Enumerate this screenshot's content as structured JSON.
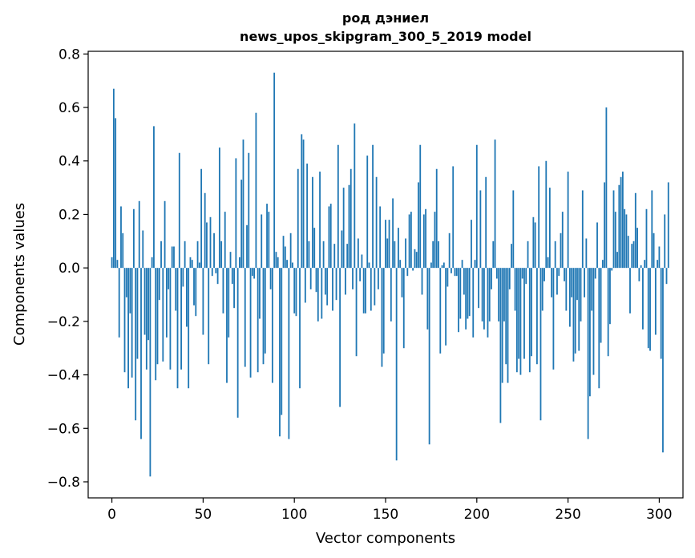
{
  "chart_data": {
    "type": "bar",
    "title_line1": "род дэниел",
    "title_line2": "news_upos_skipgram_300_5_2019 model",
    "xlabel": "Vector components",
    "ylabel": "Components values",
    "xlim": [
      -13,
      313
    ],
    "ylim": [
      -0.86,
      0.81
    ],
    "xticks": [
      0,
      50,
      100,
      150,
      200,
      250,
      300
    ],
    "xtick_labels": [
      "0",
      "50",
      "100",
      "150",
      "200",
      "250",
      "300"
    ],
    "yticks": [
      -0.8,
      -0.6,
      -0.4,
      -0.2,
      0.0,
      0.2,
      0.4,
      0.6,
      0.8
    ],
    "ytick_labels": [
      "−0.8",
      "−0.6",
      "−0.4",
      "−0.2",
      "0.0",
      "0.2",
      "0.4",
      "0.6",
      "0.8"
    ],
    "bar_color": "#1f77b4",
    "grid": false,
    "values": [
      0.04,
      0.67,
      0.56,
      0.03,
      -0.26,
      0.23,
      0.13,
      -0.39,
      -0.11,
      -0.45,
      -0.17,
      -0.41,
      0.22,
      -0.57,
      -0.34,
      0.25,
      -0.64,
      0.14,
      -0.25,
      -0.38,
      -0.27,
      -0.78,
      0.04,
      0.53,
      -0.42,
      -0.36,
      -0.12,
      0.1,
      -0.35,
      0.25,
      -0.26,
      -0.08,
      -0.38,
      0.08,
      0.08,
      -0.16,
      -0.45,
      0.43,
      -0.38,
      -0.07,
      0.1,
      -0.22,
      -0.45,
      0.04,
      0.03,
      -0.14,
      -0.18,
      0.1,
      0.02,
      0.37,
      -0.25,
      0.28,
      0.17,
      -0.36,
      0.19,
      -0.03,
      0.13,
      -0.02,
      -0.06,
      0.45,
      0.1,
      -0.17,
      0.21,
      -0.43,
      -0.26,
      0.06,
      -0.06,
      -0.15,
      0.41,
      -0.56,
      0.04,
      0.33,
      0.48,
      -0.37,
      0.16,
      0.43,
      -0.41,
      -0.03,
      -0.04,
      0.58,
      -0.39,
      -0.19,
      0.2,
      -0.36,
      -0.32,
      0.24,
      0.21,
      -0.08,
      -0.43,
      0.73,
      0.06,
      0.04,
      -0.63,
      -0.55,
      0.12,
      0.08,
      0.03,
      -0.64,
      0.13,
      0.02,
      -0.17,
      -0.18,
      0.37,
      -0.45,
      0.5,
      0.48,
      -0.13,
      0.39,
      0.1,
      -0.08,
      0.34,
      0.15,
      -0.09,
      -0.2,
      0.36,
      -0.19,
      0.1,
      -0.1,
      -0.14,
      0.23,
      0.24,
      -0.16,
      0.09,
      -0.12,
      0.46,
      -0.52,
      0.14,
      0.3,
      -0.1,
      0.09,
      0.31,
      0.37,
      -0.08,
      0.54,
      -0.33,
      0.11,
      -0.05,
      0.05,
      -0.17,
      -0.17,
      0.42,
      0.02,
      -0.16,
      0.46,
      -0.14,
      0.34,
      -0.08,
      0.23,
      -0.37,
      -0.32,
      0.18,
      0.11,
      0.18,
      -0.2,
      0.26,
      0.1,
      -0.72,
      0.15,
      0.03,
      -0.11,
      -0.3,
      0.11,
      -0.03,
      0.2,
      0.21,
      -0.01,
      0.07,
      0.06,
      0.32,
      0.46,
      -0.1,
      0.2,
      0.22,
      -0.23,
      -0.66,
      0.02,
      0.1,
      0.21,
      0.37,
      0.1,
      -0.32,
      0.01,
      0.02,
      -0.29,
      -0.07,
      0.13,
      -0.02,
      0.38,
      -0.03,
      -0.03,
      -0.24,
      -0.19,
      0.03,
      -0.1,
      -0.23,
      -0.19,
      -0.18,
      0.18,
      -0.26,
      0.03,
      0.46,
      -0.15,
      0.29,
      -0.2,
      -0.23,
      0.34,
      -0.26,
      -0.2,
      -0.08,
      0.1,
      0.48,
      -0.04,
      -0.2,
      -0.58,
      -0.43,
      -0.2,
      -0.36,
      -0.43,
      -0.08,
      0.09,
      0.29,
      -0.16,
      -0.39,
      -0.34,
      -0.4,
      -0.04,
      -0.34,
      -0.06,
      0.1,
      -0.39,
      -0.33,
      0.19,
      0.17,
      -0.36,
      0.38,
      -0.57,
      -0.16,
      -0.05,
      0.4,
      0.04,
      0.3,
      -0.11,
      -0.38,
      0.1,
      -0.1,
      -0.03,
      0.13,
      0.21,
      -0.05,
      -0.16,
      0.36,
      -0.22,
      -0.11,
      -0.35,
      -0.32,
      -0.12,
      -0.31,
      -0.2,
      0.29,
      -0.11,
      0.11,
      -0.64,
      -0.48,
      -0.16,
      -0.4,
      -0.04,
      0.17,
      -0.45,
      -0.28,
      0.03,
      0.32,
      0.6,
      -0.33,
      -0.21,
      -0.01,
      0.29,
      0.21,
      0.06,
      0.31,
      0.34,
      0.36,
      0.22,
      0.2,
      0.12,
      -0.17,
      0.09,
      0.1,
      0.28,
      0.15,
      -0.05,
      0.01,
      -0.23,
      0.03,
      0.22,
      -0.3,
      -0.31,
      0.29,
      0.13,
      -0.25,
      0.03,
      0.08,
      -0.34,
      -0.69,
      0.2,
      -0.06,
      0.32
    ]
  }
}
